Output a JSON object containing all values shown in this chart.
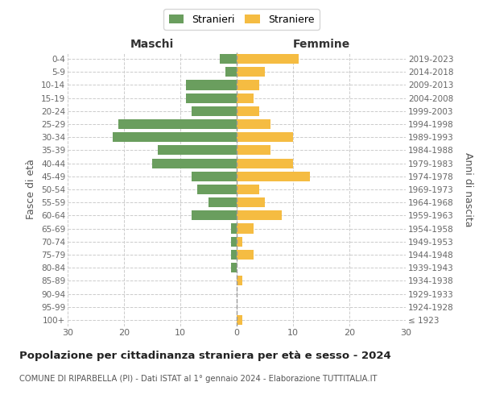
{
  "age_groups": [
    "100+",
    "95-99",
    "90-94",
    "85-89",
    "80-84",
    "75-79",
    "70-74",
    "65-69",
    "60-64",
    "55-59",
    "50-54",
    "45-49",
    "40-44",
    "35-39",
    "30-34",
    "25-29",
    "20-24",
    "15-19",
    "10-14",
    "5-9",
    "0-4"
  ],
  "birth_years": [
    "≤ 1923",
    "1924-1928",
    "1929-1933",
    "1934-1938",
    "1939-1943",
    "1944-1948",
    "1949-1953",
    "1954-1958",
    "1959-1963",
    "1964-1968",
    "1969-1973",
    "1974-1978",
    "1979-1983",
    "1984-1988",
    "1989-1993",
    "1994-1998",
    "1999-2003",
    "2004-2008",
    "2009-2013",
    "2014-2018",
    "2019-2023"
  ],
  "males": [
    0,
    0,
    0,
    0,
    1,
    1,
    1,
    1,
    8,
    5,
    7,
    8,
    15,
    14,
    22,
    21,
    8,
    9,
    9,
    2,
    3
  ],
  "females": [
    1,
    0,
    0,
    1,
    0,
    3,
    1,
    3,
    8,
    5,
    4,
    13,
    10,
    6,
    10,
    6,
    4,
    3,
    4,
    5,
    11
  ],
  "male_color": "#6a9e5e",
  "female_color": "#f5bc42",
  "background_color": "#ffffff",
  "grid_color": "#cccccc",
  "title": "Popolazione per cittadinanza straniera per età e sesso - 2024",
  "subtitle": "COMUNE DI RIPARBELLA (PI) - Dati ISTAT al 1° gennaio 2024 - Elaborazione TUTTITALIA.IT",
  "label_maschi": "Maschi",
  "label_femmine": "Femmine",
  "ylabel_left": "Fasce di età",
  "ylabel_right": "Anni di nascita",
  "legend_male": "Stranieri",
  "legend_female": "Straniere",
  "xlim": 30
}
